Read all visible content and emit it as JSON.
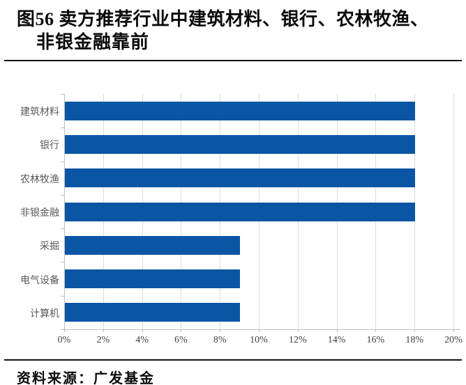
{
  "figure": {
    "title_line1": "图56 卖方推荐行业中建筑材料、银行、农林牧渔、",
    "title_line2": "非银金融靠前",
    "source": "资料来源：广发基金"
  },
  "colors": {
    "bar": "#0B56A4",
    "category_label": "#595959",
    "gridline": "#DCDCDC",
    "axis_line": "#BFBFBF"
  },
  "chart_data": {
    "type": "bar",
    "orientation": "horizontal",
    "title": "卖方推荐行业中建筑材料、银行、农林牧渔、非银金融靠前",
    "categories": [
      "建筑材料",
      "银行",
      "农林牧渔",
      "非银金融",
      "采掘",
      "电气设备",
      "计算机"
    ],
    "values": [
      18,
      18,
      18,
      18,
      9,
      9,
      9
    ],
    "unit": "%",
    "xlabel": "",
    "ylabel": "",
    "xlim": [
      0,
      20
    ],
    "x_tick_step": 2,
    "x_tick_labels": [
      "0%",
      "2%",
      "4%",
      "6%",
      "8%",
      "10%",
      "12%",
      "14%",
      "16%",
      "18%",
      "20%"
    ],
    "grid": "vertical",
    "legend": "none"
  }
}
